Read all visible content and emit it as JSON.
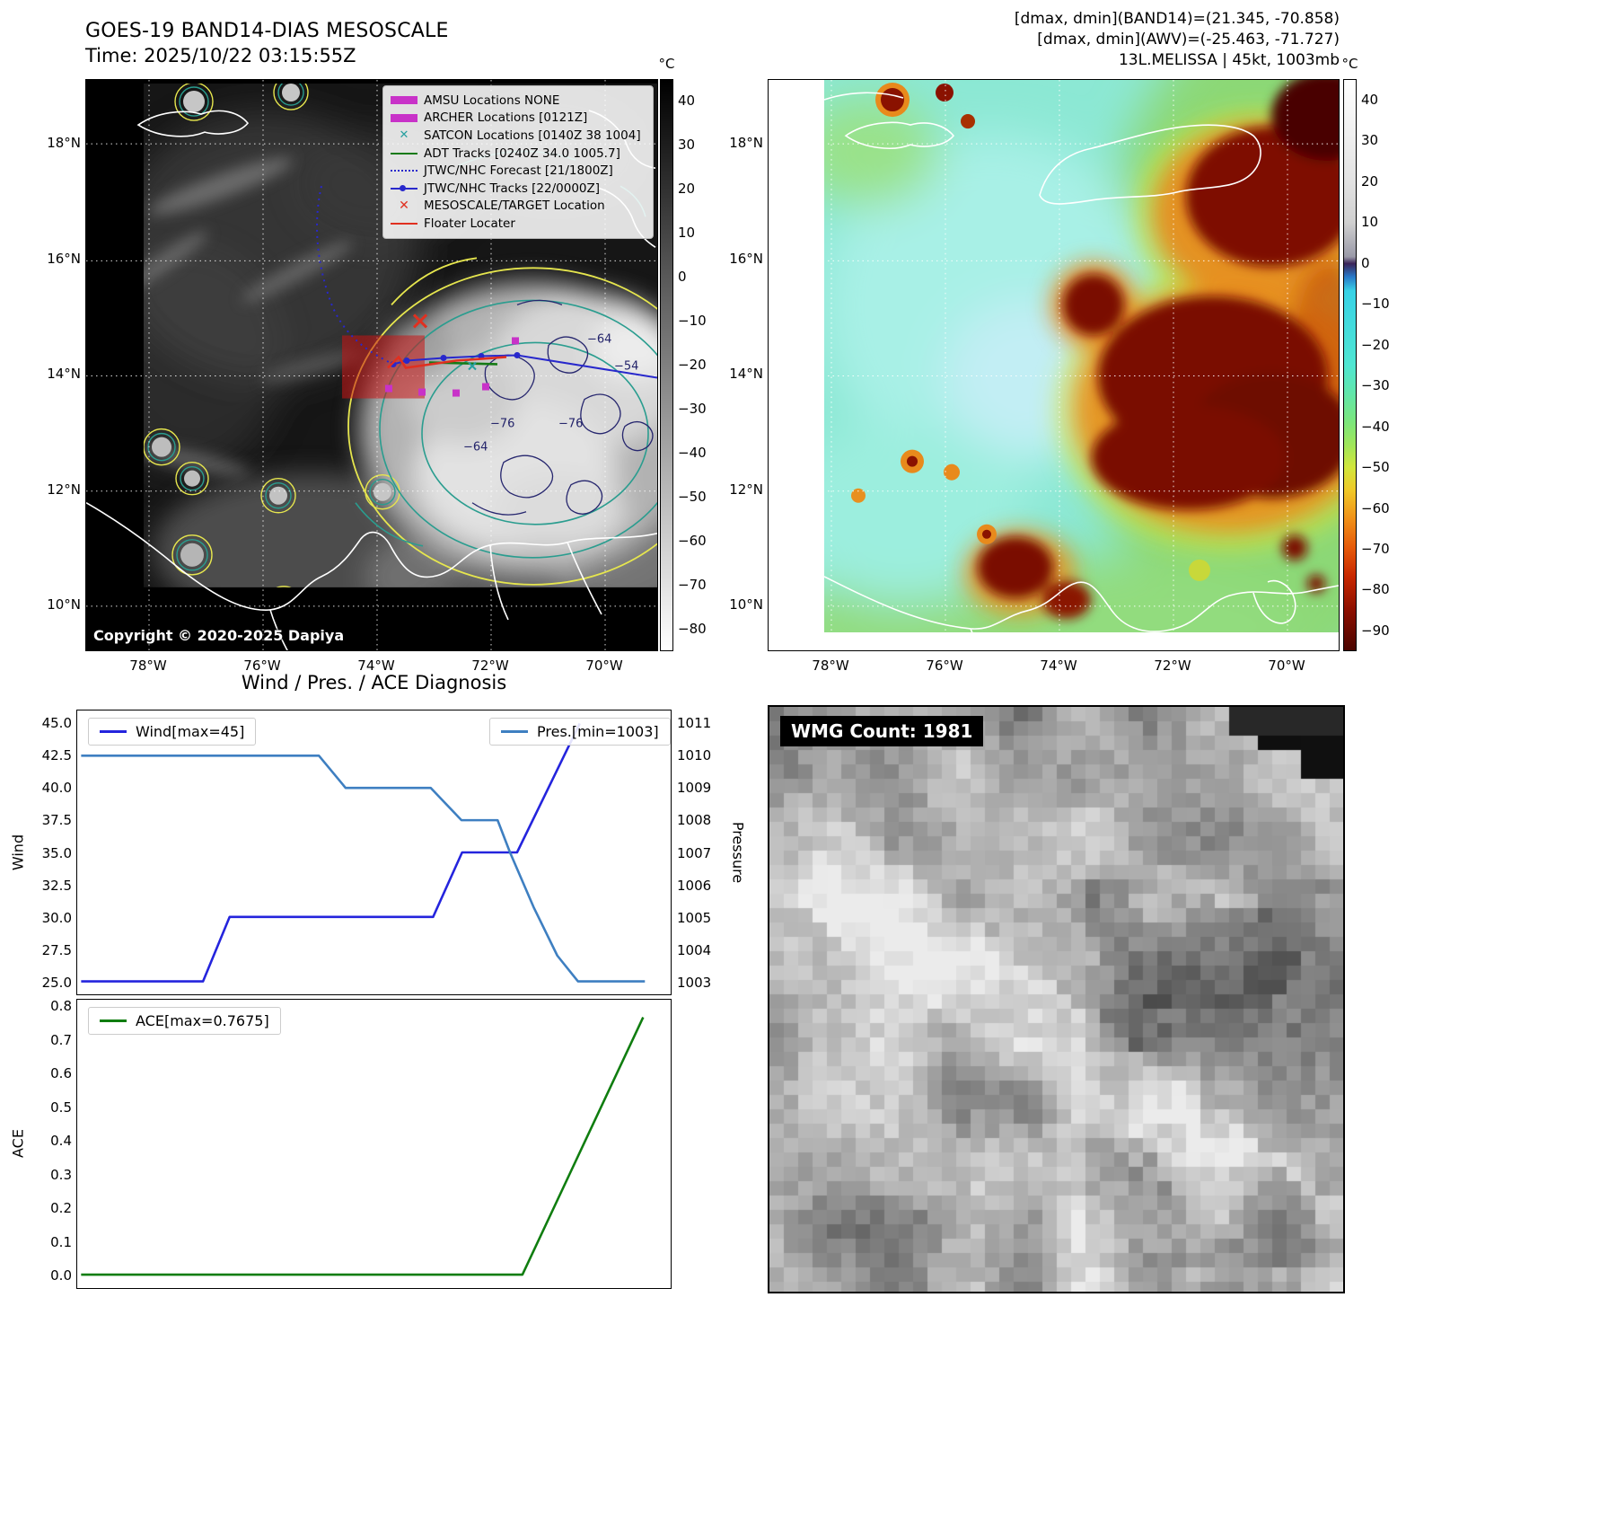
{
  "band14": {
    "title": "GOES-19 BAND14-DIAS MESOSCALE",
    "time": "Time: 2025/10/22 03:15:55Z",
    "copyright": "Copyright © 2020-2025 Dapiya",
    "unit": "°C",
    "cbar_ticks": [
      "40",
      "30",
      "20",
      "10",
      "0",
      "−10",
      "−20",
      "−30",
      "−40",
      "−50",
      "−60",
      "−70",
      "−80"
    ],
    "lat_ticks": [
      "18°N",
      "16°N",
      "14°N",
      "12°N",
      "10°N"
    ],
    "lon_ticks": [
      "78°W",
      "76°W",
      "74°W",
      "72°W",
      "70°W"
    ],
    "legend": [
      {
        "marker": "square-magenta",
        "label": "AMSU Locations NONE"
      },
      {
        "marker": "square-magenta",
        "label": "ARCHER Locations [0121Z]"
      },
      {
        "marker": "x-teal",
        "label": "SATCON Locations [0140Z 38 1004]"
      },
      {
        "marker": "line-green",
        "label": "ADT Tracks [0240Z 34.0 1005.7]"
      },
      {
        "marker": "dotted-blue",
        "label": "JTWC/NHC Forecast [21/1800Z]"
      },
      {
        "marker": "line-dot-blue",
        "label": "JTWC/NHC Tracks [22/0000Z]"
      },
      {
        "marker": "x-red",
        "label": "MESOSCALE/TARGET Location"
      },
      {
        "marker": "line-red",
        "label": "Floater Locater"
      }
    ],
    "contour_labels": [
      "−64",
      "−54",
      "−76",
      "−76",
      "−64"
    ]
  },
  "awv": {
    "header": [
      "[dmax, dmin](BAND14)=(21.345, -70.858)",
      "[dmax, dmin](AWV)=(-25.463, -71.727)",
      "13L.MELISSA | 45kt, 1003mb"
    ],
    "unit": "°C",
    "cbar_ticks": [
      "40",
      "30",
      "20",
      "10",
      "0",
      "−10",
      "−20",
      "−30",
      "−40",
      "−50",
      "−60",
      "−70",
      "−80",
      "−90"
    ],
    "lat_ticks": [
      "18°N",
      "16°N",
      "14°N",
      "12°N",
      "10°N"
    ],
    "lon_ticks": [
      "78°W",
      "76°W",
      "74°W",
      "72°W",
      "70°W"
    ]
  },
  "diagnosis": {
    "title": "Wind / Pres. / ACE Diagnosis",
    "wind_axis_label": "Wind",
    "pressure_axis_label": "Pressure",
    "ace_axis_label": "ACE",
    "legend_wind": "Wind[max=45]",
    "legend_pres": "Pres.[min=1003]",
    "legend_ace": "ACE[max=0.7675]",
    "wind_ticks": [
      "45.0",
      "42.5",
      "40.0",
      "37.5",
      "35.0",
      "32.5",
      "30.0",
      "27.5",
      "25.0"
    ],
    "pres_ticks": [
      "1011",
      "1010",
      "1009",
      "1008",
      "1007",
      "1006",
      "1005",
      "1004",
      "1003"
    ],
    "ace_ticks": [
      "0.8",
      "0.7",
      "0.6",
      "0.5",
      "0.4",
      "0.3",
      "0.2",
      "0.1",
      "0.0"
    ]
  },
  "wmg": {
    "label": "WMG Count: 1981"
  },
  "chart_data": [
    {
      "type": "line",
      "title": "Wind / Pres. / ACE Diagnosis (wind & pressure vs. time)",
      "series": [
        {
          "name": "Wind[max=45]",
          "axis": "left",
          "color": "#2424dd",
          "x": [
            0.005,
            0.211,
            0.256,
            0.6,
            0.649,
            0.742,
            0.848
          ],
          "y": [
            25,
            25,
            30,
            30,
            35,
            35,
            45
          ]
        },
        {
          "name": "Pres.[min=1003]",
          "axis": "right",
          "color": "#3e7fc1",
          "x": [
            0.005,
            0.407,
            0.452,
            0.596,
            0.648,
            0.709,
            0.73,
            0.77,
            0.81,
            0.845,
            0.958
          ],
          "y": [
            1010,
            1010,
            1009,
            1009,
            1008,
            1008,
            1007,
            1005.3,
            1003.8,
            1003,
            1003
          ]
        }
      ],
      "left_ylabel": "Wind",
      "left_ylim": [
        24,
        46
      ],
      "right_ylabel": "Pressure",
      "right_ylim": [
        1002.6,
        1011.4
      ],
      "legend_position": "upper left / upper right"
    },
    {
      "type": "line",
      "title": "ACE vs. time",
      "series": [
        {
          "name": "ACE[max=0.7675]",
          "axis": "left",
          "color": "#0f7d0f",
          "x": [
            0.005,
            0.751,
            0.955
          ],
          "y": [
            0.0,
            0.0,
            0.7675
          ]
        }
      ],
      "left_ylabel": "ACE",
      "left_ylim": [
        -0.04,
        0.82
      ],
      "legend_position": "upper left"
    }
  ],
  "colors": {
    "wind_line": "#2424dd",
    "pressure_line": "#3e7fc1",
    "ace_line": "#0f7d0f",
    "target_red": "#e03020",
    "track_blue": "#2828cc",
    "adt_green": "#157a15",
    "satcon_teal": "#28a0a0",
    "amsu_magenta": "#c832c8"
  }
}
